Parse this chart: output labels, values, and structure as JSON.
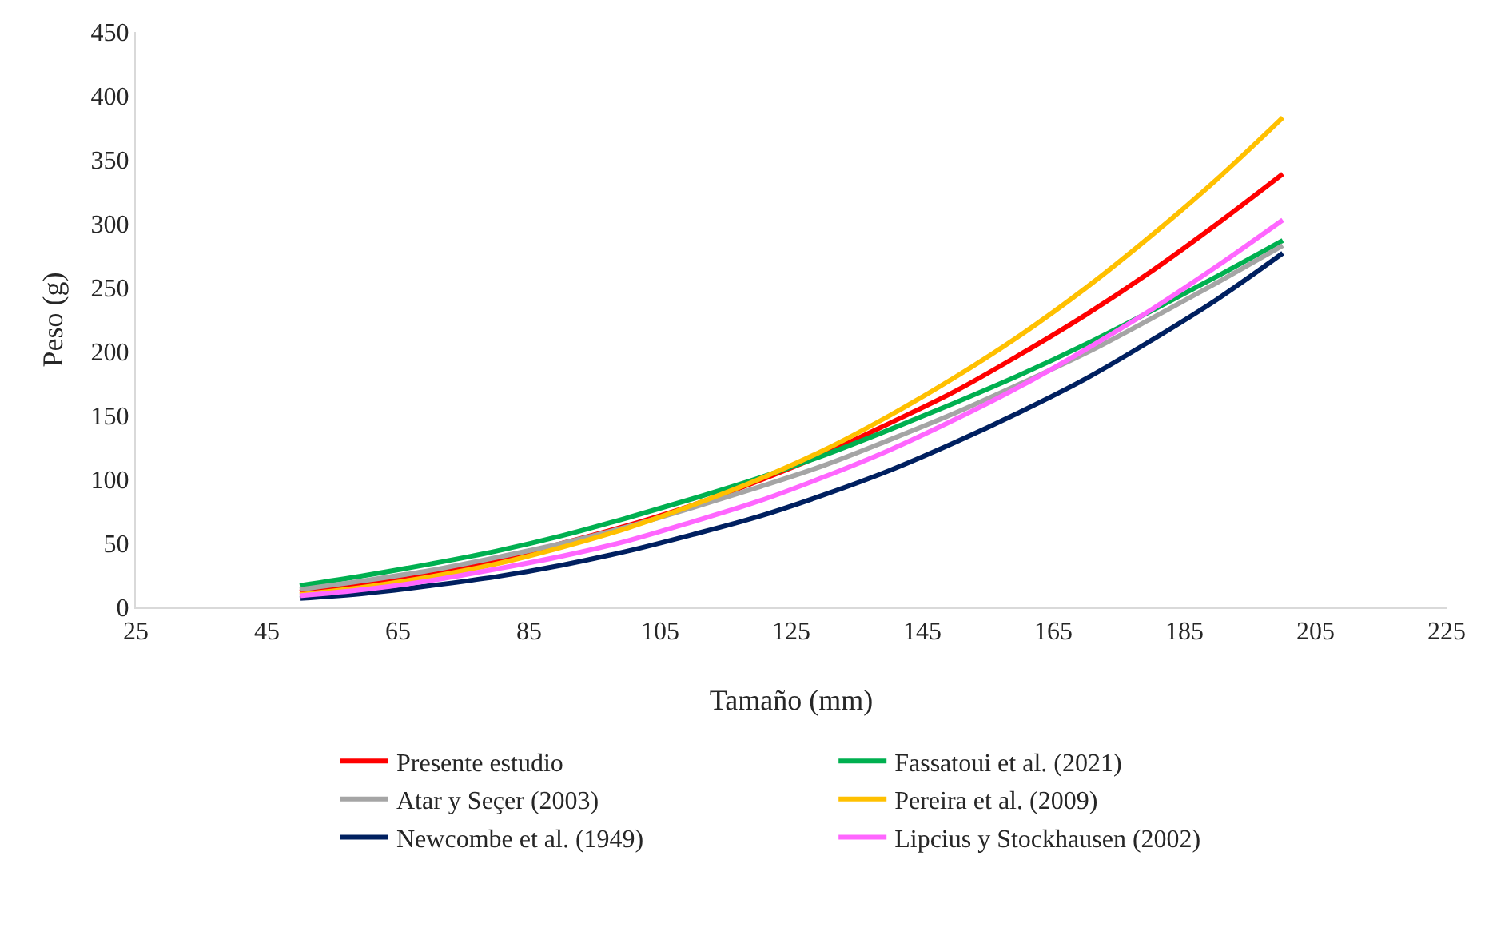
{
  "chart_data": {
    "type": "line",
    "xlabel": "Tamaño (mm)",
    "ylabel": "Peso (g)",
    "x": [
      50,
      60,
      70,
      80,
      90,
      100,
      110,
      120,
      130,
      140,
      150,
      160,
      170,
      180,
      190,
      200
    ],
    "series": [
      {
        "name": "Presente estudio",
        "color": "#ff0000",
        "values": [
          12,
          19,
          27,
          37,
          50,
          64,
          80,
          99,
          120,
          144,
          169,
          198,
          229,
          263,
          300,
          339
        ]
      },
      {
        "name": "Fassatoui et al. (2021)",
        "color": "#00b050",
        "values": [
          17,
          25,
          34,
          44,
          56,
          70,
          85,
          101,
          119,
          139,
          160,
          182,
          206,
          232,
          259,
          287
        ]
      },
      {
        "name": "Atar y Seçer (2003)",
        "color": "#a5a5a5",
        "values": [
          14,
          21,
          29,
          39,
          50,
          63,
          78,
          94,
          111,
          131,
          152,
          175,
          199,
          226,
          254,
          283
        ]
      },
      {
        "name": "Pereira et al. (2009)",
        "color": "#ffc000",
        "values": [
          10,
          16,
          24,
          34,
          47,
          62,
          80,
          100,
          123,
          150,
          180,
          213,
          250,
          291,
          335,
          383
        ]
      },
      {
        "name": "Newcombe et al. (1949)",
        "color": "#002060",
        "values": [
          7,
          11,
          17,
          24,
          33,
          44,
          57,
          71,
          88,
          107,
          129,
          153,
          179,
          209,
          241,
          277
        ]
      },
      {
        "name": "Lipcius y Stockhausen (2002)",
        "color": "#ff66ff",
        "values": [
          9,
          14,
          21,
          30,
          40,
          52,
          67,
          83,
          102,
          123,
          147,
          173,
          202,
          233,
          267,
          303
        ]
      }
    ],
    "xlim": [
      25,
      225
    ],
    "xticks": [
      25,
      45,
      65,
      85,
      105,
      125,
      145,
      165,
      185,
      205,
      225
    ],
    "ylim": [
      0,
      450
    ],
    "yticks": [
      0,
      50,
      100,
      150,
      200,
      250,
      300,
      350,
      400,
      450
    ],
    "grid": false,
    "legend": "bottom",
    "marker": "none",
    "line_style": "solid"
  }
}
